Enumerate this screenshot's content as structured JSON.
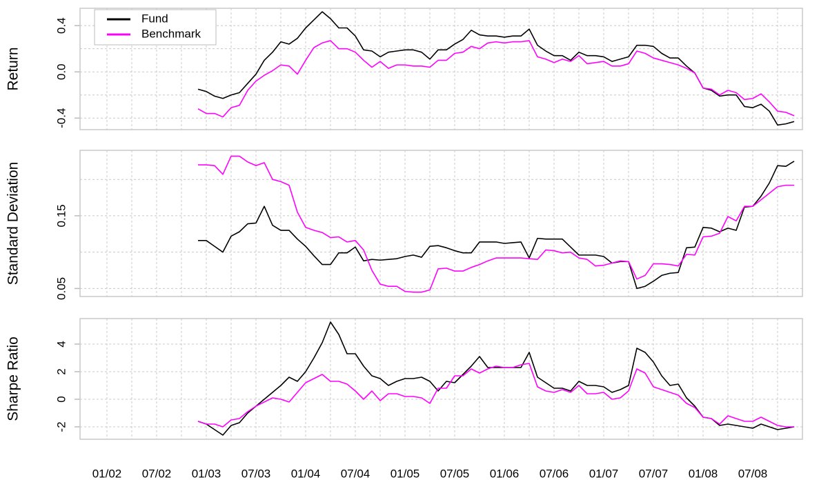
{
  "chart_data": [
    {
      "type": "line",
      "ylabel": "Return",
      "legend": "topleft",
      "x": [
        "01/02",
        "02/02",
        "03/02",
        "04/02",
        "05/02",
        "06/02",
        "07/02",
        "08/02",
        "09/02",
        "10/02",
        "11/02",
        "12/02",
        "01/03",
        "02/03",
        "03/03",
        "04/03",
        "05/03",
        "06/03",
        "07/03",
        "08/03",
        "09/03",
        "10/03",
        "11/03",
        "12/03",
        "01/04",
        "02/04",
        "03/04",
        "04/04",
        "05/04",
        "06/04",
        "07/04",
        "08/04",
        "09/04",
        "10/04",
        "11/04",
        "12/04",
        "01/05",
        "02/05",
        "03/05",
        "04/05",
        "05/05",
        "06/05",
        "07/05",
        "08/05",
        "09/05",
        "10/05",
        "11/05",
        "12/05",
        "01/06",
        "02/06",
        "03/06",
        "04/06",
        "05/06",
        "06/06",
        "07/06",
        "08/06",
        "09/06",
        "10/06",
        "11/06",
        "12/06",
        "01/07",
        "02/07",
        "03/07",
        "04/07",
        "05/07",
        "06/07",
        "07/07",
        "08/07",
        "09/07",
        "10/07",
        "11/07",
        "12/07",
        "01/08",
        "02/08",
        "03/08",
        "04/08",
        "05/08",
        "06/08",
        "07/08",
        "08/08",
        "09/08",
        "10/08",
        "11/08",
        "12/08"
      ],
      "xgrid": [
        "01/02",
        "04/02",
        "07/02",
        "10/02",
        "01/03",
        "04/03",
        "07/03",
        "10/03",
        "01/04",
        "04/04",
        "07/04",
        "10/04",
        "01/05",
        "04/05",
        "07/05",
        "10/05",
        "01/06",
        "04/06",
        "07/06",
        "10/06",
        "01/07",
        "04/07",
        "07/07",
        "10/07",
        "01/08",
        "04/08",
        "07/08",
        "10/08"
      ],
      "ylim": [
        -0.5,
        0.55
      ],
      "yticks": [
        -0.4,
        {
          "value": 0,
          "label": "0.0"
        },
        0.4
      ],
      "yminor": [
        -0.2,
        0.2
      ],
      "series": [
        {
          "name": "Fund",
          "color": "#000000",
          "values": [
            null,
            null,
            null,
            null,
            null,
            null,
            null,
            null,
            null,
            null,
            null,
            -0.15,
            -0.17,
            -0.21,
            -0.23,
            -0.2,
            -0.18,
            -0.1,
            -0.02,
            0.1,
            0.17,
            0.26,
            0.24,
            0.29,
            0.38,
            0.45,
            0.52,
            0.46,
            0.38,
            0.38,
            0.31,
            0.19,
            0.18,
            0.13,
            0.17,
            0.18,
            0.19,
            0.19,
            0.17,
            0.11,
            0.19,
            0.19,
            0.24,
            0.28,
            0.36,
            0.32,
            0.31,
            0.31,
            0.3,
            0.31,
            0.31,
            0.37,
            0.23,
            0.18,
            0.14,
            0.14,
            0.1,
            0.17,
            0.14,
            0.14,
            0.13,
            0.09,
            0.11,
            0.13,
            0.23,
            0.23,
            0.22,
            0.16,
            0.12,
            0.12,
            0.05,
            -0.01,
            -0.14,
            -0.16,
            -0.21,
            -0.2,
            -0.2,
            -0.3,
            -0.31,
            -0.28,
            -0.34,
            -0.46,
            -0.45,
            -0.43
          ]
        },
        {
          "name": "Benchmark",
          "color": "#ff00ff",
          "values": [
            null,
            null,
            null,
            null,
            null,
            null,
            null,
            null,
            null,
            null,
            null,
            -0.32,
            -0.36,
            -0.36,
            -0.39,
            -0.31,
            -0.29,
            -0.16,
            -0.08,
            -0.03,
            0.01,
            0.06,
            0.05,
            -0.02,
            0.1,
            0.21,
            0.25,
            0.27,
            0.2,
            0.2,
            0.17,
            0.1,
            0.04,
            0.09,
            0.03,
            0.06,
            0.06,
            0.05,
            0.05,
            0.04,
            0.1,
            0.1,
            0.16,
            0.17,
            0.22,
            0.2,
            0.25,
            0.26,
            0.25,
            0.26,
            0.26,
            0.27,
            0.13,
            0.11,
            0.08,
            0.11,
            0.09,
            0.14,
            0.07,
            0.08,
            0.09,
            0.05,
            0.05,
            0.07,
            0.18,
            0.16,
            0.12,
            0.1,
            0.08,
            0.06,
            0.03,
            -0.01,
            -0.14,
            -0.15,
            -0.2,
            -0.16,
            -0.18,
            -0.24,
            -0.23,
            -0.19,
            -0.26,
            -0.34,
            -0.35,
            -0.38
          ]
        }
      ]
    },
    {
      "type": "line",
      "ylabel": "Standard Deviation",
      "x": [
        "01/02",
        "02/02",
        "03/02",
        "04/02",
        "05/02",
        "06/02",
        "07/02",
        "08/02",
        "09/02",
        "10/02",
        "11/02",
        "12/02",
        "01/03",
        "02/03",
        "03/03",
        "04/03",
        "05/03",
        "06/03",
        "07/03",
        "08/03",
        "09/03",
        "10/03",
        "11/03",
        "12/03",
        "01/04",
        "02/04",
        "03/04",
        "04/04",
        "05/04",
        "06/04",
        "07/04",
        "08/04",
        "09/04",
        "10/04",
        "11/04",
        "12/04",
        "01/05",
        "02/05",
        "03/05",
        "04/05",
        "05/05",
        "06/05",
        "07/05",
        "08/05",
        "09/05",
        "10/05",
        "11/05",
        "12/05",
        "01/06",
        "02/06",
        "03/06",
        "04/06",
        "05/06",
        "06/06",
        "07/06",
        "08/06",
        "09/06",
        "10/06",
        "11/06",
        "12/06",
        "01/07",
        "02/07",
        "03/07",
        "04/07",
        "05/07",
        "06/07",
        "07/07",
        "08/07",
        "09/07",
        "10/07",
        "11/07",
        "12/07",
        "01/08",
        "02/08",
        "03/08",
        "04/08",
        "05/08",
        "06/08",
        "07/08",
        "08/08",
        "09/08",
        "10/08",
        "11/08",
        "12/08"
      ],
      "xgrid": [
        "01/02",
        "04/02",
        "07/02",
        "10/02",
        "01/03",
        "04/03",
        "07/03",
        "10/03",
        "01/04",
        "04/04",
        "07/04",
        "10/04",
        "01/05",
        "04/05",
        "07/05",
        "10/05",
        "01/06",
        "04/06",
        "07/06",
        "10/06",
        "01/07",
        "04/07",
        "07/07",
        "10/07",
        "01/08",
        "04/08",
        "07/08",
        "10/08"
      ],
      "ylim": [
        0.039,
        0.24
      ],
      "yticks": [
        0.05,
        0.15
      ],
      "yminor": [
        0.1,
        0.2
      ],
      "series": [
        {
          "name": "Fund",
          "color": "#000000",
          "values": [
            null,
            null,
            null,
            null,
            null,
            null,
            null,
            null,
            null,
            null,
            null,
            0.116,
            0.116,
            0.108,
            0.1,
            0.122,
            0.128,
            0.139,
            0.14,
            0.163,
            0.137,
            0.13,
            0.13,
            0.118,
            0.108,
            0.095,
            0.083,
            0.083,
            0.099,
            0.099,
            0.107,
            0.088,
            0.09,
            0.089,
            0.09,
            0.091,
            0.094,
            0.096,
            0.093,
            0.108,
            0.109,
            0.106,
            0.102,
            0.099,
            0.099,
            0.114,
            0.114,
            0.114,
            0.112,
            0.113,
            0.114,
            0.092,
            0.119,
            0.118,
            0.118,
            0.118,
            0.107,
            0.096,
            0.096,
            0.096,
            0.094,
            0.085,
            0.087,
            0.087,
            0.05,
            0.053,
            0.06,
            0.068,
            0.071,
            0.072,
            0.106,
            0.107,
            0.134,
            0.133,
            0.128,
            0.133,
            0.13,
            0.162,
            0.163,
            0.177,
            0.195,
            0.219,
            0.218,
            0.225
          ]
        },
        {
          "name": "Benchmark",
          "color": "#ff00ff",
          "values": [
            null,
            null,
            null,
            null,
            null,
            null,
            null,
            null,
            null,
            null,
            null,
            0.22,
            0.22,
            0.219,
            0.207,
            0.232,
            0.232,
            0.224,
            0.219,
            0.223,
            0.2,
            0.197,
            0.192,
            0.155,
            0.134,
            0.13,
            0.127,
            0.12,
            0.121,
            0.114,
            0.116,
            0.103,
            0.075,
            0.056,
            0.053,
            0.053,
            0.046,
            0.045,
            0.045,
            0.048,
            0.077,
            0.078,
            0.074,
            0.074,
            0.079,
            0.083,
            0.088,
            0.092,
            0.092,
            0.092,
            0.092,
            0.091,
            0.09,
            0.103,
            0.102,
            0.099,
            0.1,
            0.092,
            0.09,
            0.081,
            0.082,
            0.085,
            0.088,
            0.087,
            0.063,
            0.068,
            0.084,
            0.084,
            0.083,
            0.081,
            0.097,
            0.096,
            0.121,
            0.122,
            0.126,
            0.149,
            0.143,
            0.163,
            0.163,
            0.172,
            0.181,
            0.19,
            0.192,
            0.192
          ]
        }
      ]
    },
    {
      "type": "line",
      "ylabel": "Sharpe Ratio",
      "x": [
        "01/02",
        "02/02",
        "03/02",
        "04/02",
        "05/02",
        "06/02",
        "07/02",
        "08/02",
        "09/02",
        "10/02",
        "11/02",
        "12/02",
        "01/03",
        "02/03",
        "03/03",
        "04/03",
        "05/03",
        "06/03",
        "07/03",
        "08/03",
        "09/03",
        "10/03",
        "11/03",
        "12/03",
        "01/04",
        "02/04",
        "03/04",
        "04/04",
        "05/04",
        "06/04",
        "07/04",
        "08/04",
        "09/04",
        "10/04",
        "11/04",
        "12/04",
        "01/05",
        "02/05",
        "03/05",
        "04/05",
        "05/05",
        "06/05",
        "07/05",
        "08/05",
        "09/05",
        "10/05",
        "11/05",
        "12/05",
        "01/06",
        "02/06",
        "03/06",
        "04/06",
        "05/06",
        "06/06",
        "07/06",
        "08/06",
        "09/06",
        "10/06",
        "11/06",
        "12/06",
        "01/07",
        "02/07",
        "03/07",
        "04/07",
        "05/07",
        "06/07",
        "07/07",
        "08/07",
        "09/07",
        "10/07",
        "11/07",
        "12/07",
        "01/08",
        "02/08",
        "03/08",
        "04/08",
        "05/08",
        "06/08",
        "07/08",
        "08/08",
        "09/08",
        "10/08",
        "11/08",
        "12/08"
      ],
      "xgrid": [
        "01/02",
        "04/02",
        "07/02",
        "10/02",
        "01/03",
        "04/03",
        "07/03",
        "10/03",
        "01/04",
        "04/04",
        "07/04",
        "10/04",
        "01/05",
        "04/05",
        "07/05",
        "10/05",
        "01/06",
        "04/06",
        "07/06",
        "10/06",
        "01/07",
        "04/07",
        "07/07",
        "10/07",
        "01/08",
        "04/08",
        "07/08",
        "10/08"
      ],
      "xticks": [
        "01/02",
        "07/02",
        "01/03",
        "07/03",
        "01/04",
        "07/04",
        "01/05",
        "07/05",
        "01/06",
        "07/06",
        "01/07",
        "07/07",
        "01/08",
        "07/08"
      ],
      "ylim": [
        -2.9,
        5.85
      ],
      "yticks": [
        -2,
        0,
        2,
        4
      ],
      "series": [
        {
          "name": "Fund",
          "color": "#000000",
          "values": [
            null,
            null,
            null,
            null,
            null,
            null,
            null,
            null,
            null,
            null,
            null,
            -1.6,
            -1.8,
            -2.2,
            -2.6,
            -1.9,
            -1.7,
            -1,
            -0.5,
            0,
            0.5,
            1,
            1.6,
            1.3,
            2,
            3,
            4.1,
            5.6,
            4.7,
            3.3,
            3.3,
            2.4,
            1.7,
            1.5,
            1,
            1.3,
            1.5,
            1.5,
            1.6,
            1.3,
            0.6,
            1.3,
            1.2,
            1.8,
            2.4,
            3.1,
            2.3,
            2.3,
            2.3,
            2.3,
            2.3,
            3.4,
            1.6,
            1.2,
            0.8,
            0.8,
            0.6,
            1.3,
            1,
            1,
            0.9,
            0.5,
            0.7,
            1,
            3.7,
            3.4,
            2.7,
            1.7,
            1,
            1.1,
            0.1,
            -0.5,
            -1.3,
            -1.4,
            -1.9,
            -1.8,
            -1.9,
            -2,
            -2.1,
            -1.8,
            -2,
            -2.2,
            -2.1,
            -2
          ]
        },
        {
          "name": "Benchmark",
          "color": "#ff00ff",
          "values": [
            null,
            null,
            null,
            null,
            null,
            null,
            null,
            null,
            null,
            null,
            null,
            -1.6,
            -1.8,
            -1.8,
            -2,
            -1.5,
            -1.4,
            -0.9,
            -0.5,
            -0.2,
            0.1,
            0,
            -0.2,
            0.5,
            1.2,
            1.5,
            1.8,
            1.3,
            1.3,
            1.1,
            0.6,
            0,
            0.6,
            -0.1,
            0.4,
            0.4,
            0.2,
            0.2,
            0.1,
            -0.3,
            0.8,
            0.8,
            1.7,
            1.7,
            2.2,
            1.9,
            2.2,
            2.4,
            2.3,
            2.3,
            2.5,
            2.6,
            0.9,
            0.6,
            0.5,
            0.7,
            0.5,
            1,
            0.4,
            0.4,
            0.5,
            0,
            0.1,
            0.6,
            2.2,
            1.9,
            0.9,
            0.7,
            0.5,
            0.3,
            -0.3,
            -0.6,
            -1.3,
            -1.4,
            -1.8,
            -1.2,
            -1.4,
            -1.6,
            -1.6,
            -1.3,
            -1.6,
            -1.9,
            -2,
            -2
          ]
        }
      ]
    }
  ]
}
